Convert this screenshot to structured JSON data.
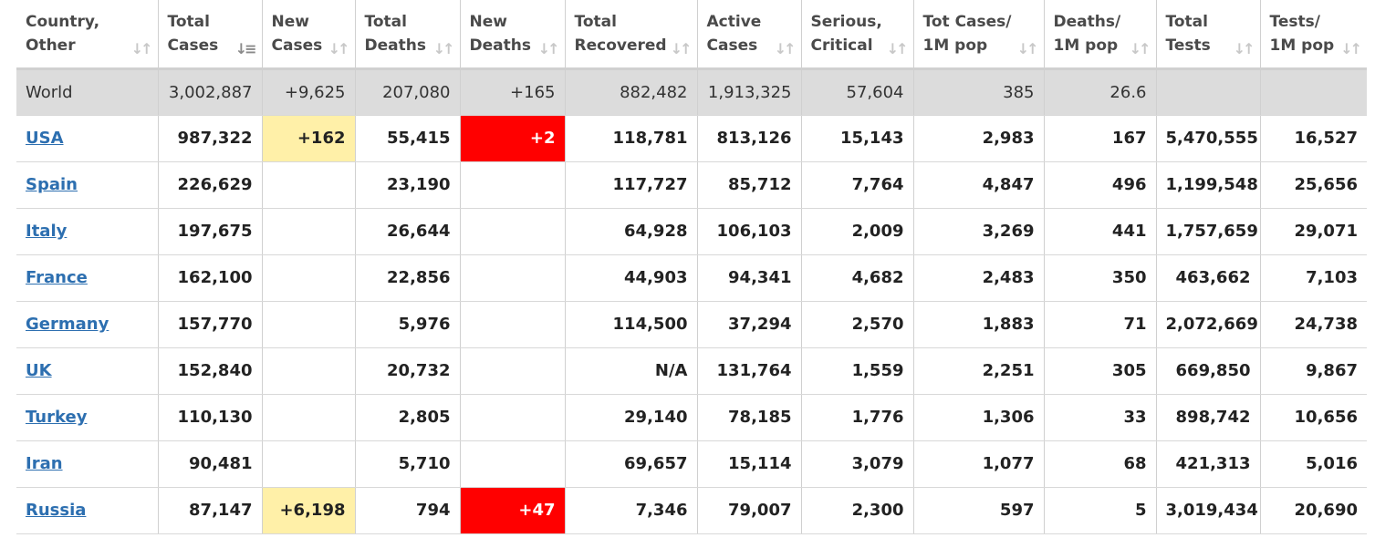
{
  "colors": {
    "new_cases_highlight": "#fff0a8",
    "new_deaths_highlight": "#ff0000",
    "link": "#2d6fb0",
    "world_row_bg": "#dcdcdc"
  },
  "columns": [
    {
      "label": "Country,\nOther",
      "icon": "sort-icon"
    },
    {
      "label": "Total\nCases",
      "icon": "sort-desc-icon"
    },
    {
      "label": "New\nCases",
      "icon": "sort-icon"
    },
    {
      "label": "Total\nDeaths",
      "icon": "sort-icon"
    },
    {
      "label": "New\nDeaths",
      "icon": "sort-icon"
    },
    {
      "label": "Total\nRecovered",
      "icon": "sort-icon"
    },
    {
      "label": "Active\nCases",
      "icon": "sort-icon"
    },
    {
      "label": "Serious,\nCritical",
      "icon": "sort-icon"
    },
    {
      "label": "Tot Cases/\n1M pop",
      "icon": "sort-icon"
    },
    {
      "label": "Deaths/\n1M pop",
      "icon": "sort-icon"
    },
    {
      "label": "Total\nTests",
      "icon": "sort-icon"
    },
    {
      "label": "Tests/\n1M pop",
      "icon": "sort-icon"
    }
  ],
  "rows": [
    {
      "country": "World",
      "total_cases": "3,002,887",
      "new_cases": "+9,625",
      "total_deaths": "207,080",
      "new_deaths": "+165",
      "total_recovered": "882,482",
      "active_cases": "1,913,325",
      "serious_critical": "57,604",
      "cases_per_1m": "385",
      "deaths_per_1m": "26.6",
      "total_tests": "",
      "tests_per_1m": ""
    },
    {
      "country": "USA",
      "total_cases": "987,322",
      "new_cases": "+162",
      "total_deaths": "55,415",
      "new_deaths": "+2",
      "total_recovered": "118,781",
      "active_cases": "813,126",
      "serious_critical": "15,143",
      "cases_per_1m": "2,983",
      "deaths_per_1m": "167",
      "total_tests": "5,470,555",
      "tests_per_1m": "16,527"
    },
    {
      "country": "Spain",
      "total_cases": "226,629",
      "new_cases": "",
      "total_deaths": "23,190",
      "new_deaths": "",
      "total_recovered": "117,727",
      "active_cases": "85,712",
      "serious_critical": "7,764",
      "cases_per_1m": "4,847",
      "deaths_per_1m": "496",
      "total_tests": "1,199,548",
      "tests_per_1m": "25,656"
    },
    {
      "country": "Italy",
      "total_cases": "197,675",
      "new_cases": "",
      "total_deaths": "26,644",
      "new_deaths": "",
      "total_recovered": "64,928",
      "active_cases": "106,103",
      "serious_critical": "2,009",
      "cases_per_1m": "3,269",
      "deaths_per_1m": "441",
      "total_tests": "1,757,659",
      "tests_per_1m": "29,071"
    },
    {
      "country": "France",
      "total_cases": "162,100",
      "new_cases": "",
      "total_deaths": "22,856",
      "new_deaths": "",
      "total_recovered": "44,903",
      "active_cases": "94,341",
      "serious_critical": "4,682",
      "cases_per_1m": "2,483",
      "deaths_per_1m": "350",
      "total_tests": "463,662",
      "tests_per_1m": "7,103"
    },
    {
      "country": "Germany",
      "total_cases": "157,770",
      "new_cases": "",
      "total_deaths": "5,976",
      "new_deaths": "",
      "total_recovered": "114,500",
      "active_cases": "37,294",
      "serious_critical": "2,570",
      "cases_per_1m": "1,883",
      "deaths_per_1m": "71",
      "total_tests": "2,072,669",
      "tests_per_1m": "24,738"
    },
    {
      "country": "UK",
      "total_cases": "152,840",
      "new_cases": "",
      "total_deaths": "20,732",
      "new_deaths": "",
      "total_recovered": "N/A",
      "active_cases": "131,764",
      "serious_critical": "1,559",
      "cases_per_1m": "2,251",
      "deaths_per_1m": "305",
      "total_tests": "669,850",
      "tests_per_1m": "9,867"
    },
    {
      "country": "Turkey",
      "total_cases": "110,130",
      "new_cases": "",
      "total_deaths": "2,805",
      "new_deaths": "",
      "total_recovered": "29,140",
      "active_cases": "78,185",
      "serious_critical": "1,776",
      "cases_per_1m": "1,306",
      "deaths_per_1m": "33",
      "total_tests": "898,742",
      "tests_per_1m": "10,656"
    },
    {
      "country": "Iran",
      "total_cases": "90,481",
      "new_cases": "",
      "total_deaths": "5,710",
      "new_deaths": "",
      "total_recovered": "69,657",
      "active_cases": "15,114",
      "serious_critical": "3,079",
      "cases_per_1m": "1,077",
      "deaths_per_1m": "68",
      "total_tests": "421,313",
      "tests_per_1m": "5,016"
    },
    {
      "country": "Russia",
      "total_cases": "87,147",
      "new_cases": "+6,198",
      "total_deaths": "794",
      "new_deaths": "+47",
      "total_recovered": "7,346",
      "active_cases": "79,007",
      "serious_critical": "2,300",
      "cases_per_1m": "597",
      "deaths_per_1m": "5",
      "total_tests": "3,019,434",
      "tests_per_1m": "20,690"
    }
  ]
}
